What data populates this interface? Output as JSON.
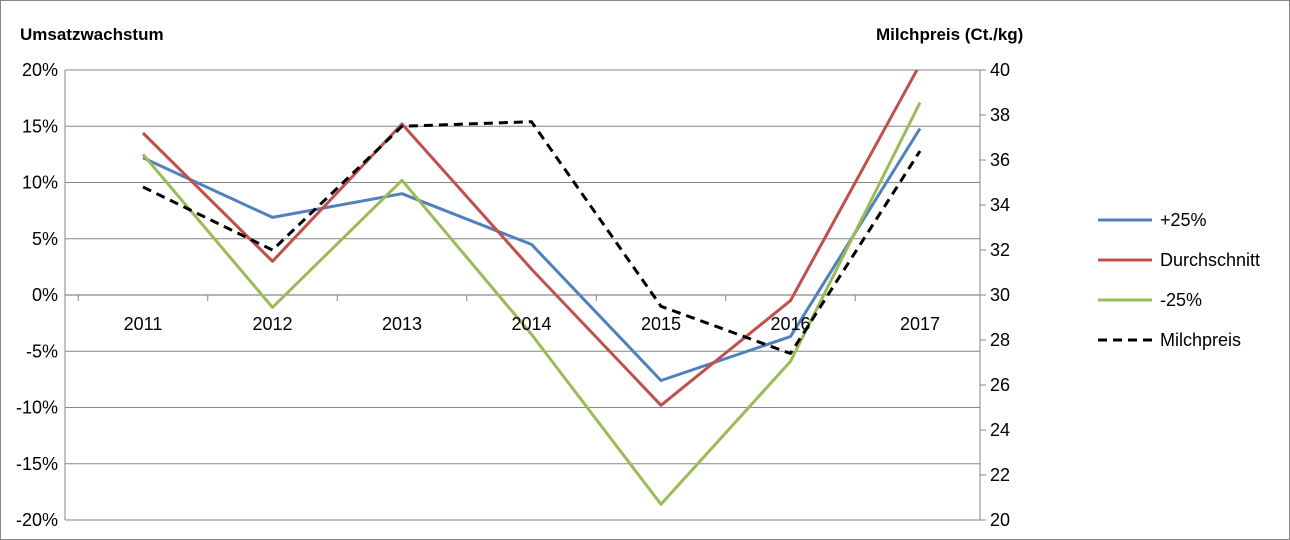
{
  "chart_data": {
    "type": "line",
    "categories": [
      "2011",
      "2012",
      "2013",
      "2014",
      "2015",
      "2016",
      "2017"
    ],
    "y_left": {
      "title": "Umsatzwachstum",
      "range": [
        -0.2,
        0.2
      ],
      "step": 0.05,
      "tick_labels": [
        "-20%",
        "-15%",
        "-10%",
        "-5%",
        "0%",
        "5%",
        "10%",
        "15%",
        "20%"
      ]
    },
    "y_right": {
      "title": "Milchpreis (Ct./kg)",
      "range": [
        20,
        40
      ],
      "step": 2,
      "tick_labels": [
        "20",
        "22",
        "24",
        "26",
        "28",
        "30",
        "32",
        "34",
        "36",
        "38",
        "40"
      ]
    },
    "grid": true,
    "legend_position": "right",
    "series": [
      {
        "name": "+25%",
        "axis": "left",
        "color": "#4F81BD",
        "dashed": false,
        "values": [
          0.122,
          0.069,
          0.09,
          0.045,
          -0.076,
          -0.037,
          0.148
        ]
      },
      {
        "name": "Durchschnitt",
        "axis": "left",
        "color": "#C0504D",
        "dashed": false,
        "values": [
          0.144,
          0.03,
          0.152,
          0.023,
          -0.098,
          -0.005,
          0.205
        ]
      },
      {
        "name": "-25%",
        "axis": "left",
        "color": "#9BBB59",
        "dashed": false,
        "values": [
          0.125,
          -0.011,
          0.102,
          -0.035,
          -0.186,
          -0.059,
          0.171
        ]
      },
      {
        "name": "Milchpreis",
        "axis": "right",
        "color": "#000000",
        "dashed": true,
        "values": [
          34.8,
          32.0,
          37.5,
          37.7,
          29.5,
          27.4,
          36.4
        ]
      }
    ]
  }
}
